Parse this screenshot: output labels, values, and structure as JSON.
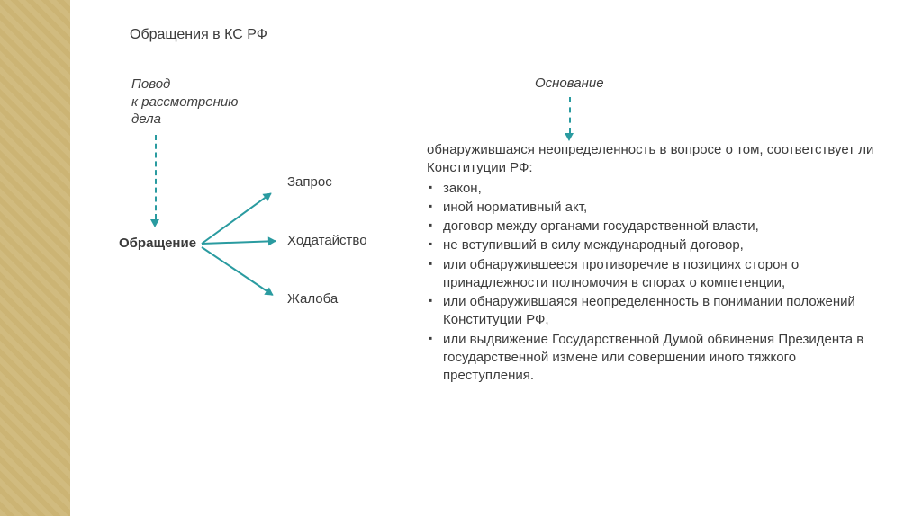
{
  "title": "Обращения в КС РФ",
  "left": {
    "reason_label": "Повод\nк рассмотрению\nдела",
    "center": "Обращение",
    "branches": [
      "Запрос",
      "Ходатайство",
      "Жалоба"
    ]
  },
  "right": {
    "basis_label": "Основание",
    "intro": "обнаружившаяся неопределенность в вопросе о том, соответствует ли Конституции РФ:",
    "items": [
      "закон,",
      "иной нормативный акт,",
      "договор между органами государственной власти,",
      "не вступивший в силу международный договор,",
      "или обнаружившееся противоречие в позициях сторон о принадлежности полномочия в спорах о компетенции,",
      "или обнаружившаяся неопределенность в понимании положений Конституции РФ,",
      "или выдвижение Государственной Думой обвинения Президента в государственной измене или совершении иного тяжкого преступления."
    ]
  },
  "colors": {
    "arrow_teal": "#2a9ba0",
    "text": "#3b3b3b",
    "sidebar": "#e6d9b0"
  }
}
